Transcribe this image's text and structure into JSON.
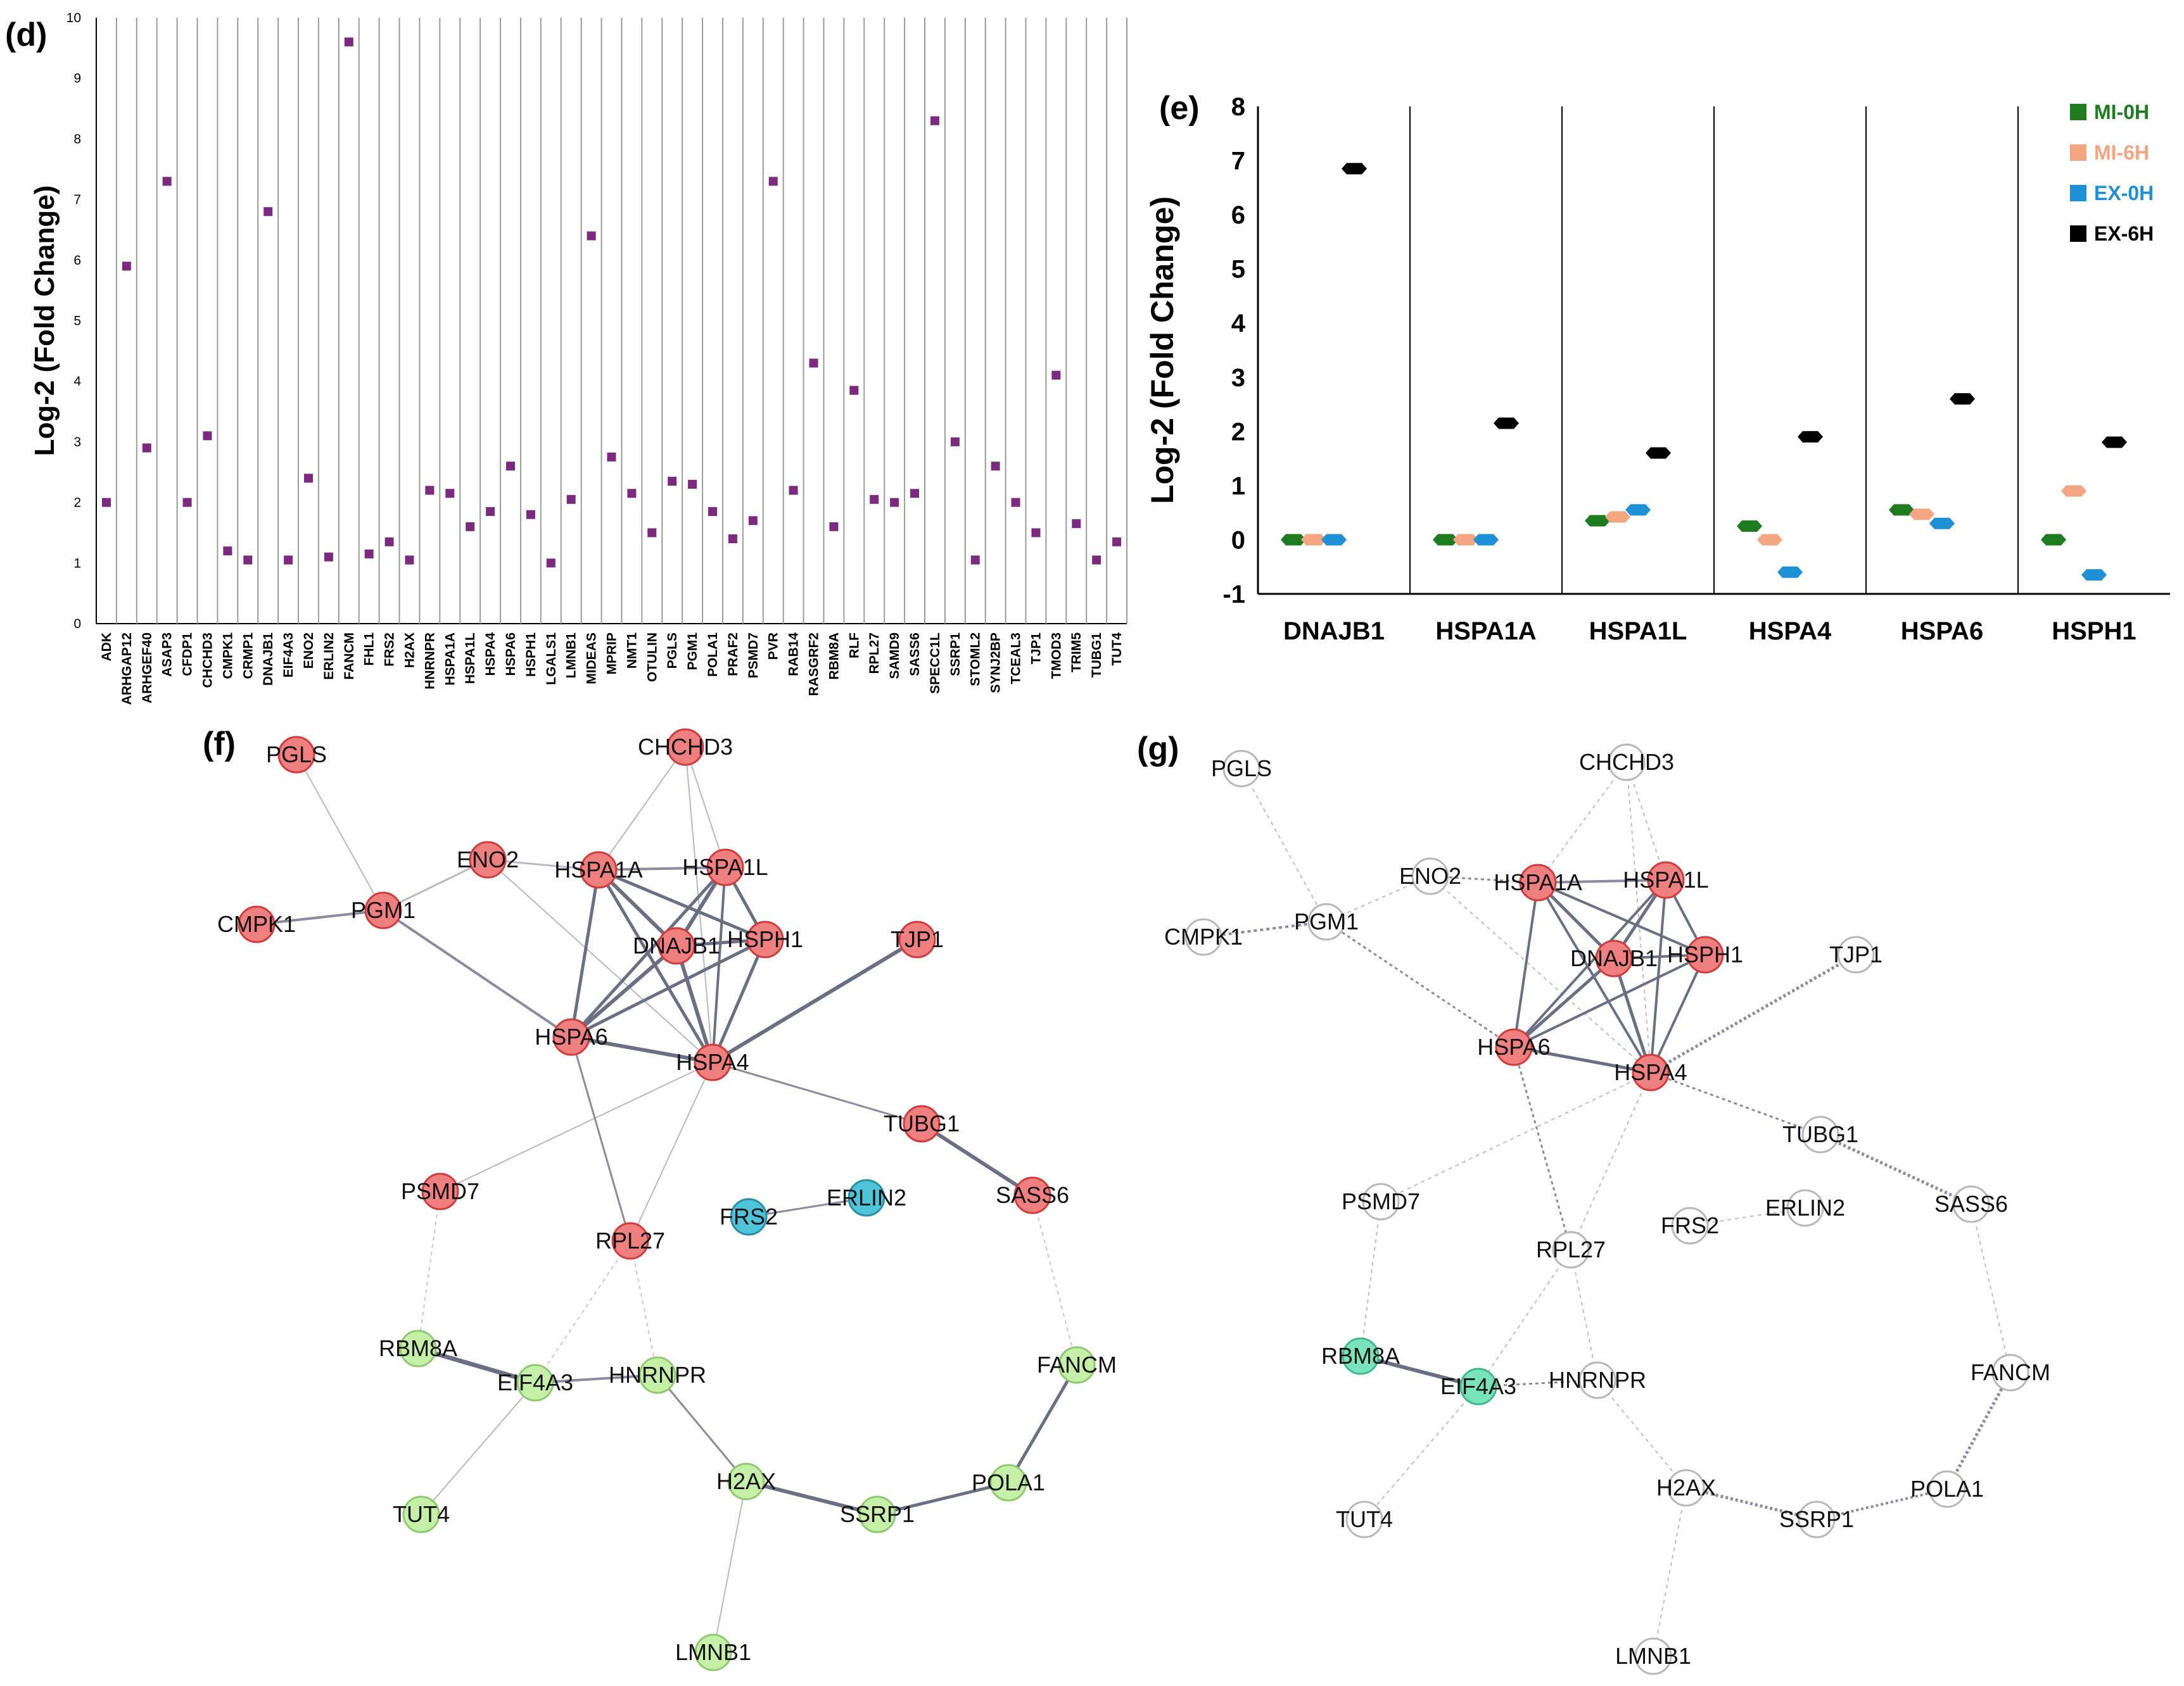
{
  "chart_data": [
    {
      "panel": "(d)",
      "type": "scatter",
      "ylabel": "Log-2 (Fold Change)",
      "ylim": [
        0,
        10
      ],
      "yticks": [
        "0",
        "1",
        "2",
        "3",
        "4",
        "5",
        "6",
        "7",
        "8",
        "9",
        "10"
      ],
      "marker_color": "#7b2a7e",
      "categories": [
        "ADK",
        "ARHGAP12",
        "ARHGEF40",
        "ASAP3",
        "CFDP1",
        "CHCHD3",
        "CMPK1",
        "CRMP1",
        "DNAJB1",
        "EIF4A3",
        "ENO2",
        "ERLIN2",
        "FANCM",
        "FHL1",
        "FRS2",
        "H2AX",
        "HNRNPR",
        "HSPA1A",
        "HSPA1L",
        "HSPA4",
        "HSPA6",
        "HSPH1",
        "LGALS1",
        "LMNB1",
        "MIDEAS",
        "MPRIP",
        "NMT1",
        "OTULIN",
        "PGLS",
        "PGM1",
        "POLA1",
        "PRAF2",
        "PSMD7",
        "PVR",
        "RAB14",
        "RASGRF2",
        "RBM8A",
        "RLF",
        "RPL27",
        "SAMD9",
        "SASS6",
        "SPECC1L",
        "SSRP1",
        "STOML2",
        "SYNJ2BP",
        "TCEAL3",
        "TJP1",
        "TMOD3",
        "TRIM5",
        "TUBG1",
        "TUT4"
      ],
      "values": [
        2.0,
        5.9,
        2.9,
        7.3,
        2.0,
        3.1,
        1.2,
        1.05,
        6.8,
        1.05,
        2.4,
        1.1,
        9.6,
        1.15,
        1.35,
        1.05,
        2.2,
        2.15,
        1.6,
        1.85,
        2.6,
        1.8,
        1.0,
        2.05,
        6.4,
        2.75,
        2.15,
        1.5,
        2.35,
        2.3,
        1.85,
        1.4,
        1.7,
        7.3,
        2.2,
        4.3,
        1.6,
        3.85,
        2.05,
        2.0,
        2.15,
        8.3,
        3.0,
        1.05,
        2.6,
        2.0,
        1.5,
        4.1,
        1.65,
        1.05,
        1.35
      ]
    },
    {
      "panel": "(e)",
      "type": "scatter",
      "ylabel": "Log-2 (Fold Change)",
      "ylim": [
        -1,
        8
      ],
      "yticks": [
        "-1",
        "0",
        "1",
        "2",
        "3",
        "4",
        "5",
        "6",
        "7",
        "8"
      ],
      "categories": [
        "DNAJB1",
        "HSPA1A",
        "HSPA1L",
        "HSPA4",
        "HSPA6",
        "HSPH1"
      ],
      "series": [
        {
          "name": "MI-0H",
          "color": "#1e7b1e",
          "values": [
            0.0,
            0.0,
            0.35,
            0.25,
            0.55,
            0.0
          ]
        },
        {
          "name": "MI-6H",
          "color": "#f4a582",
          "values": [
            0.0,
            0.0,
            0.42,
            0.0,
            0.47,
            0.9
          ]
        },
        {
          "name": "EX-0H",
          "color": "#1e90d6",
          "values": [
            0.0,
            0.0,
            0.55,
            -0.6,
            0.3,
            -0.65
          ]
        },
        {
          "name": "EX-6H",
          "color": "#000000",
          "values": [
            6.85,
            2.15,
            1.6,
            1.9,
            2.6,
            1.8
          ]
        }
      ]
    }
  ],
  "networks": {
    "f": {
      "label": "(f)",
      "nodes": [
        {
          "id": "PGLS",
          "color": "red"
        },
        {
          "id": "CHCHD3",
          "color": "red"
        },
        {
          "id": "ENO2",
          "color": "red"
        },
        {
          "id": "HSPA1A",
          "color": "red"
        },
        {
          "id": "HSPA1L",
          "color": "red"
        },
        {
          "id": "CMPK1",
          "color": "red"
        },
        {
          "id": "PGM1",
          "color": "red"
        },
        {
          "id": "DNAJB1",
          "color": "red"
        },
        {
          "id": "HSPH1",
          "color": "red"
        },
        {
          "id": "TJP1",
          "color": "red"
        },
        {
          "id": "HSPA6",
          "color": "red"
        },
        {
          "id": "HSPA4",
          "color": "red"
        },
        {
          "id": "TUBG1",
          "color": "red"
        },
        {
          "id": "PSMD7",
          "color": "red"
        },
        {
          "id": "FRS2",
          "color": "blue"
        },
        {
          "id": "ERLIN2",
          "color": "blue"
        },
        {
          "id": "SASS6",
          "color": "red"
        },
        {
          "id": "RPL27",
          "color": "red"
        },
        {
          "id": "RBM8A",
          "color": "green"
        },
        {
          "id": "EIF4A3",
          "color": "green"
        },
        {
          "id": "HNRNPR",
          "color": "green"
        },
        {
          "id": "FANCM",
          "color": "green"
        },
        {
          "id": "TUT4",
          "color": "green"
        },
        {
          "id": "H2AX",
          "color": "green"
        },
        {
          "id": "SSRP1",
          "color": "green"
        },
        {
          "id": "POLA1",
          "color": "green"
        },
        {
          "id": "LMNB1",
          "color": "green"
        }
      ]
    },
    "g": {
      "label": "(g)",
      "nodes": [
        {
          "id": "PGLS",
          "color": "white"
        },
        {
          "id": "CHCHD3",
          "color": "white"
        },
        {
          "id": "ENO2",
          "color": "white"
        },
        {
          "id": "HSPA1A",
          "color": "red"
        },
        {
          "id": "HSPA1L",
          "color": "red"
        },
        {
          "id": "CMPK1",
          "color": "white"
        },
        {
          "id": "PGM1",
          "color": "white"
        },
        {
          "id": "DNAJB1",
          "color": "red"
        },
        {
          "id": "HSPH1",
          "color": "red"
        },
        {
          "id": "TJP1",
          "color": "white"
        },
        {
          "id": "HSPA6",
          "color": "red"
        },
        {
          "id": "HSPA4",
          "color": "red"
        },
        {
          "id": "TUBG1",
          "color": "white"
        },
        {
          "id": "PSMD7",
          "color": "white"
        },
        {
          "id": "SASS6",
          "color": "white"
        },
        {
          "id": "FRS2",
          "color": "white"
        },
        {
          "id": "ERLIN2",
          "color": "white"
        },
        {
          "id": "RPL27",
          "color": "white"
        },
        {
          "id": "RBM8A",
          "color": "teal"
        },
        {
          "id": "EIF4A3",
          "color": "teal"
        },
        {
          "id": "HNRNPR",
          "color": "white"
        },
        {
          "id": "FANCM",
          "color": "white"
        },
        {
          "id": "TUT4",
          "color": "white"
        },
        {
          "id": "H2AX",
          "color": "white"
        },
        {
          "id": "SSRP1",
          "color": "white"
        },
        {
          "id": "POLA1",
          "color": "white"
        },
        {
          "id": "LMNB1",
          "color": "white"
        }
      ]
    }
  }
}
